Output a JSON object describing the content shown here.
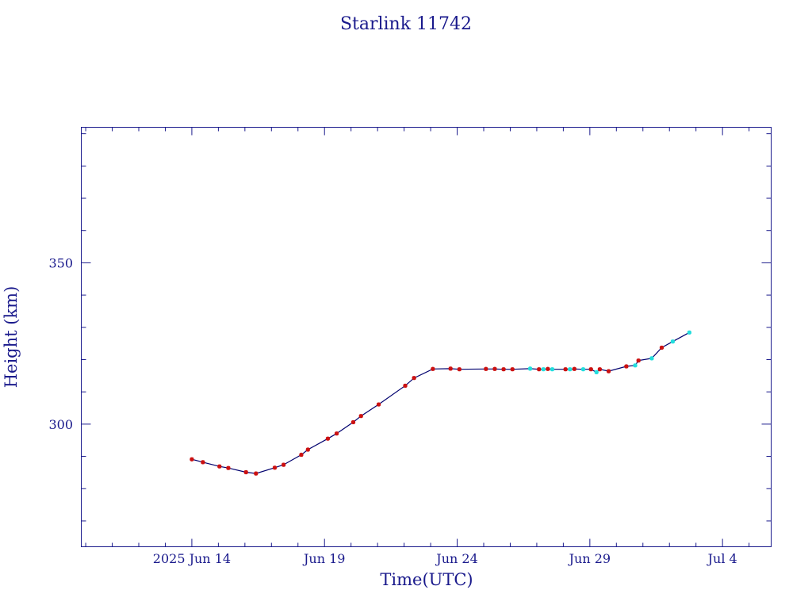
{
  "chart_data": {
    "type": "line",
    "title": "Starlink 11742",
    "xlabel": "Time(UTC)",
    "ylabel": "Height (km)",
    "xlim": [
      "2025-06-09T20:00",
      "2025-07-05T20:00"
    ],
    "ylim": [
      262,
      392
    ],
    "x_tick_labels": [
      "2025 Jun 14",
      "Jun 19",
      "Jun 24",
      "Jun 29",
      "Jul  4"
    ],
    "x_tick_dates": [
      "2025-06-14",
      "2025-06-19",
      "2025-06-24",
      "2025-06-29",
      "2025-07-04"
    ],
    "y_tick_labels": [
      "300",
      "350"
    ],
    "y_tick_values": [
      300,
      350
    ],
    "grid": false,
    "colors": {
      "axis": "#1a1a8c",
      "line": "#00006e",
      "marker_primary": "#cc1111",
      "marker_secondary": "#22dddd"
    },
    "series": [
      {
        "marker_color": "#cc1111",
        "points": [
          [
            "2025-06-14T00:00",
            289.1
          ],
          [
            "2025-06-14T10:00",
            288.2
          ],
          [
            "2025-06-15T01:00",
            286.9
          ],
          [
            "2025-06-15T09:00",
            286.4
          ],
          [
            "2025-06-16T01:00",
            285.1
          ],
          [
            "2025-06-16T10:00",
            284.7
          ],
          [
            "2025-06-17T03:00",
            286.5
          ],
          [
            "2025-06-17T11:00",
            287.4
          ],
          [
            "2025-06-18T03:00",
            290.5
          ],
          [
            "2025-06-18T09:00",
            292.1
          ],
          [
            "2025-06-19T03:00",
            295.5
          ],
          [
            "2025-06-19T11:00",
            297.1
          ],
          [
            "2025-06-20T02:00",
            300.6
          ],
          [
            "2025-06-20T09:00",
            302.5
          ],
          [
            "2025-06-21T01:00",
            306.1
          ],
          [
            "2025-06-22T01:00",
            311.9
          ],
          [
            "2025-06-22T09:00",
            314.3
          ],
          [
            "2025-06-23T02:00",
            317.1
          ],
          [
            "2025-06-23T18:00",
            317.2
          ],
          [
            "2025-06-24T02:00",
            317.0
          ],
          [
            "2025-06-25T02:00",
            317.1
          ],
          [
            "2025-06-25T10:00",
            317.1
          ],
          [
            "2025-06-25T18:00",
            317.0
          ],
          [
            "2025-06-26T02:00",
            317.0
          ],
          [
            "2025-06-27T02:00",
            317.0
          ],
          [
            "2025-06-27T10:00",
            317.1
          ],
          [
            "2025-06-28T02:00",
            317.0
          ],
          [
            "2025-06-28T10:00",
            317.1
          ],
          [
            "2025-06-29T01:00",
            317.0
          ],
          [
            "2025-06-29T09:00",
            317.0
          ],
          [
            "2025-06-29T17:00",
            316.4
          ],
          [
            "2025-06-30T09:00",
            317.9
          ],
          [
            "2025-06-30T20:00",
            319.7
          ],
          [
            "2025-07-01T17:00",
            323.7
          ]
        ]
      },
      {
        "marker_color": "#22dddd",
        "points": [
          [
            "2025-06-26T18:00",
            317.2
          ],
          [
            "2025-06-27T06:00",
            317.0
          ],
          [
            "2025-06-27T14:00",
            317.0
          ],
          [
            "2025-06-28T06:00",
            317.0
          ],
          [
            "2025-06-28T18:00",
            317.0
          ],
          [
            "2025-06-29T06:00",
            316.1
          ],
          [
            "2025-06-30T17:00",
            318.2
          ],
          [
            "2025-07-01T08:00",
            320.4
          ],
          [
            "2025-07-02T03:00",
            325.6
          ],
          [
            "2025-07-02T18:00",
            328.4
          ]
        ]
      }
    ]
  }
}
